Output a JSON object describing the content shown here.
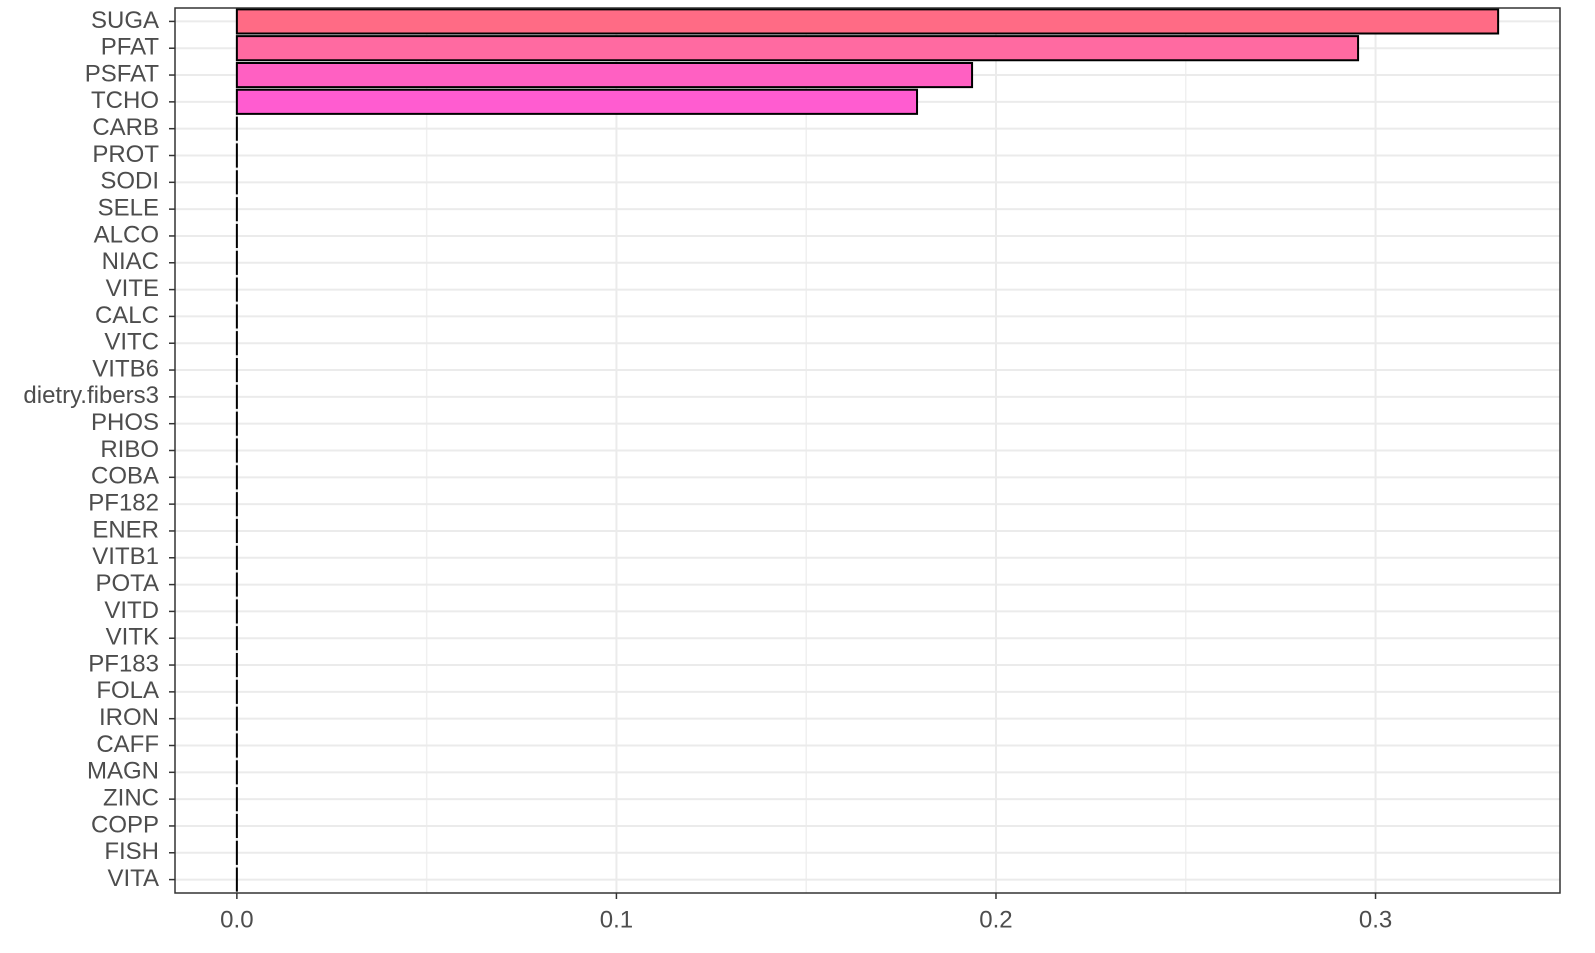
{
  "chart_data": {
    "type": "barh",
    "categories": [
      "SUGA",
      "PFAT",
      "PSFAT",
      "TCHO",
      "CARB",
      "PROT",
      "SODI",
      "SELE",
      "ALCO",
      "NIAC",
      "VITE",
      "CALC",
      "VITC",
      "VITB6",
      "dietry.fibers3",
      "PHOS",
      "RIBO",
      "COBA",
      "PF182",
      "ENER",
      "VITB1",
      "POTA",
      "VITD",
      "VITK",
      "PF183",
      "FOLA",
      "IRON",
      "CAFF",
      "MAGN",
      "ZINC",
      "COPP",
      "FISH",
      "VITA"
    ],
    "values": [
      0.3323,
      0.2954,
      0.1937,
      0.1792,
      0,
      0,
      0,
      0,
      0,
      0,
      0,
      0,
      0,
      0,
      0,
      0,
      0,
      0,
      0,
      0,
      0,
      0,
      0,
      0,
      0,
      0,
      0,
      0,
      0,
      0,
      0,
      0,
      0
    ],
    "colors": [
      "#ff6b85",
      "#ff6aa1",
      "#ff60c2",
      "#ff5cd0"
    ],
    "xlim": [
      -0.0163,
      0.3486
    ],
    "xticks": [
      {
        "value": 0,
        "label": "0.0"
      },
      0.1,
      0.2,
      0.3
    ],
    "xminorticks": [
      0.05,
      0.15,
      0.25
    ],
    "grid": true
  }
}
